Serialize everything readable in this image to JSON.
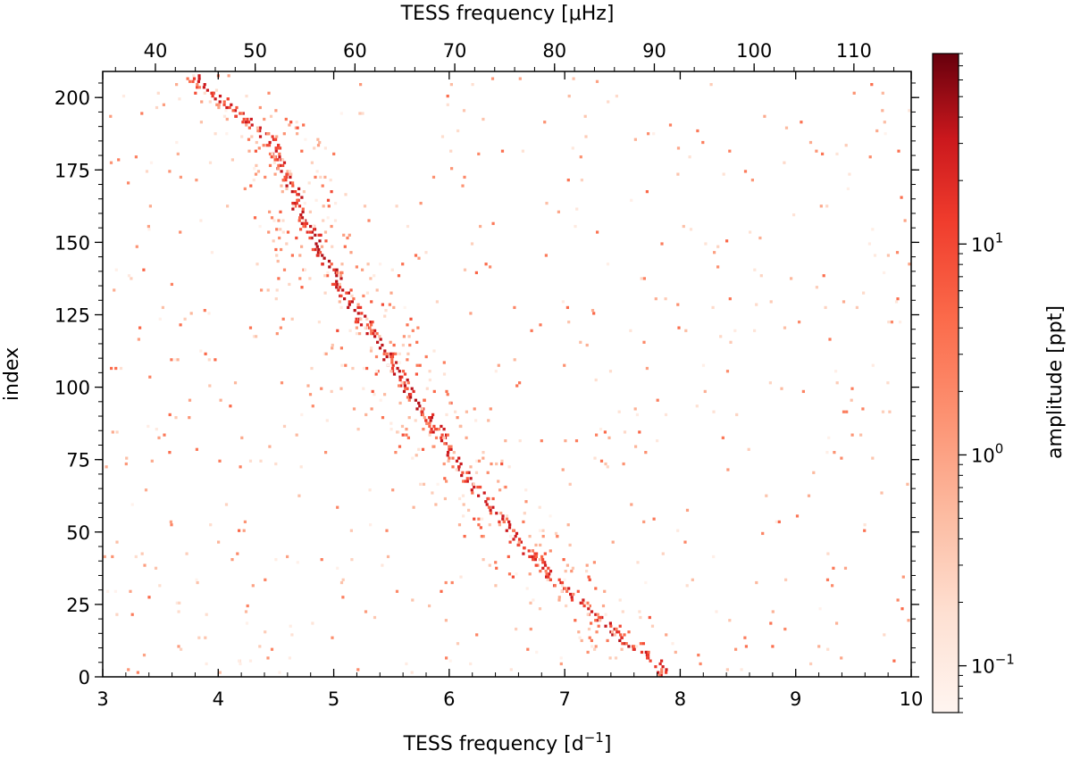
{
  "chart_data": {
    "type": "heatmap",
    "title": "",
    "xlabel_bottom": "TESS frequency [d",
    "xlabel_bottom_exponent": "−1",
    "xlabel_bottom_close": "]",
    "xlabel_top": "TESS frequency [μHz]",
    "ylabel": "index",
    "colorbar_label": "amplitude [ppt]",
    "colormap": "Reds",
    "colorbar_scale": "log",
    "xlim": [
      3,
      10
    ],
    "xlim_top_uHz": [
      34.72,
      115.74
    ],
    "ylim": [
      0,
      209
    ],
    "amplitude_range_ppt": [
      0.06,
      80
    ],
    "x_ticks": [
      3,
      4,
      5,
      6,
      7,
      8,
      9,
      10
    ],
    "x_tick_labels": [
      "3",
      "4",
      "5",
      "6",
      "7",
      "8",
      "9",
      "10"
    ],
    "x_top_ticks": [
      40,
      50,
      60,
      70,
      80,
      90,
      100,
      110
    ],
    "x_top_tick_labels": [
      "40",
      "50",
      "60",
      "70",
      "80",
      "90",
      "100",
      "110"
    ],
    "y_ticks": [
      0,
      25,
      50,
      75,
      100,
      125,
      150,
      175,
      200
    ],
    "y_tick_labels": [
      "0",
      "25",
      "50",
      "75",
      "100",
      "125",
      "150",
      "175",
      "200"
    ],
    "colorbar_ticks": [
      {
        "value": 0.1,
        "base": "10",
        "exp": "−1"
      },
      {
        "value": 1,
        "base": "10",
        "exp": "0"
      },
      {
        "value": 10,
        "base": "10",
        "exp": "1"
      }
    ],
    "ridge": {
      "description": "main diagonal ridge of high-amplitude peaks",
      "index": [
        0,
        5,
        10,
        15,
        20,
        25,
        30,
        35,
        40,
        45,
        50,
        55,
        60,
        65,
        70,
        75,
        80,
        85,
        90,
        95,
        100,
        105,
        110,
        115,
        120,
        125,
        130,
        135,
        140,
        145,
        150,
        155,
        160,
        165,
        170,
        175,
        180,
        185,
        190,
        195,
        200,
        205
      ],
      "frequency": [
        7.85,
        7.8,
        7.55,
        7.45,
        7.3,
        7.15,
        7.0,
        6.85,
        6.75,
        6.62,
        6.55,
        6.42,
        6.3,
        6.22,
        6.12,
        6.05,
        5.98,
        5.9,
        5.8,
        5.7,
        5.62,
        5.55,
        5.48,
        5.4,
        5.3,
        5.22,
        5.12,
        5.05,
        4.98,
        4.9,
        4.85,
        4.8,
        4.7,
        4.68,
        4.62,
        4.55,
        4.5,
        4.45,
        4.3,
        4.15,
        4.0,
        3.78
      ],
      "amplitude_ppt": [
        30,
        20,
        40,
        35,
        30,
        25,
        30,
        25,
        25,
        25,
        30,
        30,
        30,
        30,
        35,
        30,
        30,
        30,
        35,
        40,
        35,
        35,
        35,
        35,
        30,
        35,
        35,
        35,
        40,
        40,
        40,
        35,
        35,
        35,
        35,
        30,
        30,
        30,
        30,
        30,
        30,
        30
      ]
    },
    "scatter_seed": 20240517,
    "scatter_count_per_row_mean": 6
  }
}
